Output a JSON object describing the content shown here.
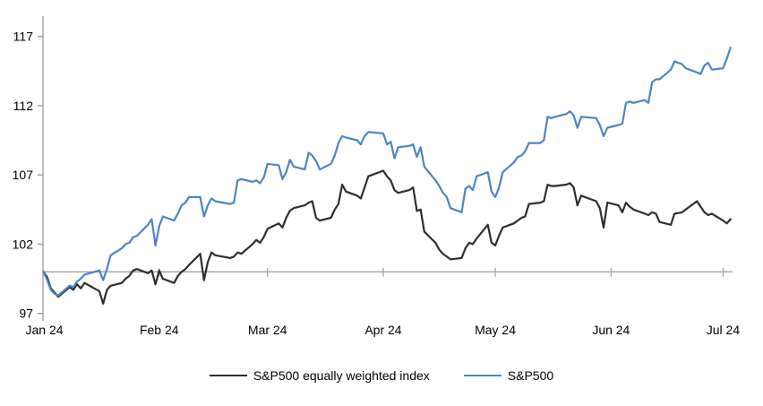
{
  "chart_data": {
    "type": "line",
    "title": "",
    "x_axis": {
      "tick_labels": [
        "Jan 24",
        "Feb 24",
        "Mar 24",
        "Apr 24",
        "May 24",
        "Jun 24",
        "Jul 24"
      ],
      "tick_days": [
        0,
        31,
        60,
        91,
        121,
        152,
        182
      ]
    },
    "y_axis": {
      "ticks": [
        97,
        102,
        107,
        112,
        117
      ],
      "range": [
        97,
        117.9
      ]
    },
    "baseline_value": 100,
    "legend_position": "bottom",
    "grid": false,
    "days": [
      0,
      1,
      2,
      3,
      4,
      7,
      8,
      9,
      10,
      11,
      15,
      16,
      17,
      18,
      21,
      22,
      23,
      24,
      25,
      28,
      29,
      30,
      31,
      32,
      35,
      36,
      37,
      38,
      39,
      42,
      43,
      44,
      45,
      46,
      50,
      51,
      52,
      53,
      56,
      57,
      58,
      59,
      60,
      63,
      64,
      65,
      66,
      67,
      70,
      71,
      72,
      73,
      74,
      77,
      78,
      79,
      80,
      81,
      84,
      85,
      86,
      87,
      91,
      92,
      93,
      94,
      95,
      98,
      99,
      100,
      101,
      102,
      105,
      106,
      107,
      108,
      109,
      112,
      113,
      114,
      115,
      116,
      119,
      120,
      121,
      122,
      123,
      126,
      127,
      128,
      129,
      130,
      133,
      134,
      135,
      136,
      137,
      140,
      141,
      142,
      143,
      144,
      148,
      149,
      150,
      151,
      154,
      155,
      156,
      157,
      158,
      161,
      162,
      163,
      164,
      165,
      168,
      169,
      171,
      172,
      175,
      176,
      177,
      178,
      179,
      182,
      183,
      184
    ],
    "series": [
      {
        "name": "S&P500 equally weighted index",
        "color": "#2e2e2e",
        "values": [
          100,
          99.6,
          98.8,
          98.5,
          98.2,
          98.9,
          98.7,
          99.1,
          98.8,
          99.2,
          98.6,
          97.7,
          98.7,
          99.0,
          99.2,
          99.5,
          99.7,
          100.1,
          100.2,
          99.9,
          100.1,
          99.1,
          100.1,
          99.5,
          99.2,
          99.7,
          100.0,
          100.2,
          100.5,
          101.3,
          99.4,
          100.7,
          101.4,
          101.2,
          101.0,
          101.1,
          101.4,
          101.3,
          102.0,
          102.3,
          102.1,
          102.5,
          103.1,
          103.5,
          103.2,
          103.9,
          104.4,
          104.6,
          104.8,
          105.0,
          105.1,
          103.9,
          103.7,
          103.9,
          104.5,
          104.9,
          106.3,
          105.8,
          105.5,
          105.3,
          106.1,
          106.9,
          107.3,
          106.9,
          106.6,
          105.9,
          105.7,
          105.9,
          106.1,
          104.4,
          104.5,
          102.9,
          102.1,
          101.6,
          101.3,
          101.1,
          100.9,
          101.0,
          101.7,
          102.1,
          102.0,
          102.4,
          103.4,
          102.1,
          101.9,
          102.6,
          103.2,
          103.5,
          103.7,
          103.9,
          104.0,
          104.9,
          105.0,
          105.1,
          106.3,
          106.2,
          106.2,
          106.3,
          106.4,
          106.1,
          104.8,
          105.5,
          105.1,
          104.6,
          103.2,
          105.0,
          104.8,
          104.3,
          105.0,
          104.7,
          104.5,
          104.2,
          104.1,
          104.3,
          104.2,
          103.6,
          103.4,
          104.2,
          104.3,
          104.5,
          105.1,
          104.7,
          104.3,
          104.1,
          104.2,
          103.7,
          103.5,
          103.8
        ]
      },
      {
        "name": "S&P500",
        "color": "#4e84c4",
        "values": [
          100,
          99.4,
          98.7,
          98.4,
          98.3,
          99.0,
          98.9,
          99.3,
          99.5,
          99.8,
          100.1,
          99.4,
          100.2,
          101.2,
          101.7,
          102.0,
          102.1,
          102.5,
          102.6,
          103.4,
          103.8,
          101.9,
          103.3,
          104.0,
          103.7,
          104.2,
          104.8,
          105.0,
          105.4,
          105.4,
          104.0,
          104.8,
          105.3,
          105.1,
          104.9,
          105.0,
          106.6,
          106.7,
          106.5,
          106.6,
          106.4,
          106.8,
          107.8,
          107.7,
          106.7,
          107.2,
          108.1,
          107.6,
          107.4,
          108.6,
          108.4,
          108.0,
          107.4,
          107.8,
          108.4,
          109.3,
          109.8,
          109.7,
          109.5,
          109.2,
          109.8,
          110.1,
          110.0,
          109.2,
          109.4,
          108.2,
          109.0,
          109.1,
          109.2,
          108.3,
          109.0,
          107.6,
          106.6,
          106.2,
          105.7,
          105.4,
          104.6,
          104.3,
          106.0,
          106.2,
          105.9,
          106.9,
          107.2,
          105.8,
          105.4,
          106.1,
          107.2,
          107.9,
          108.3,
          108.4,
          108.7,
          109.3,
          109.3,
          109.5,
          111.2,
          111.1,
          111.2,
          111.4,
          111.6,
          111.3,
          110.4,
          111.2,
          111.1,
          110.6,
          109.8,
          110.4,
          110.6,
          110.7,
          112.2,
          112.3,
          112.2,
          112.4,
          112.2,
          113.7,
          113.9,
          113.9,
          114.6,
          115.2,
          115.0,
          114.7,
          114.4,
          114.3,
          114.9,
          115.1,
          114.6,
          114.7,
          115.4,
          116.2
        ]
      }
    ],
    "colors": {
      "axis": "#9a9a9a",
      "baseline": "#a0a0a0",
      "text": "#000000"
    }
  }
}
